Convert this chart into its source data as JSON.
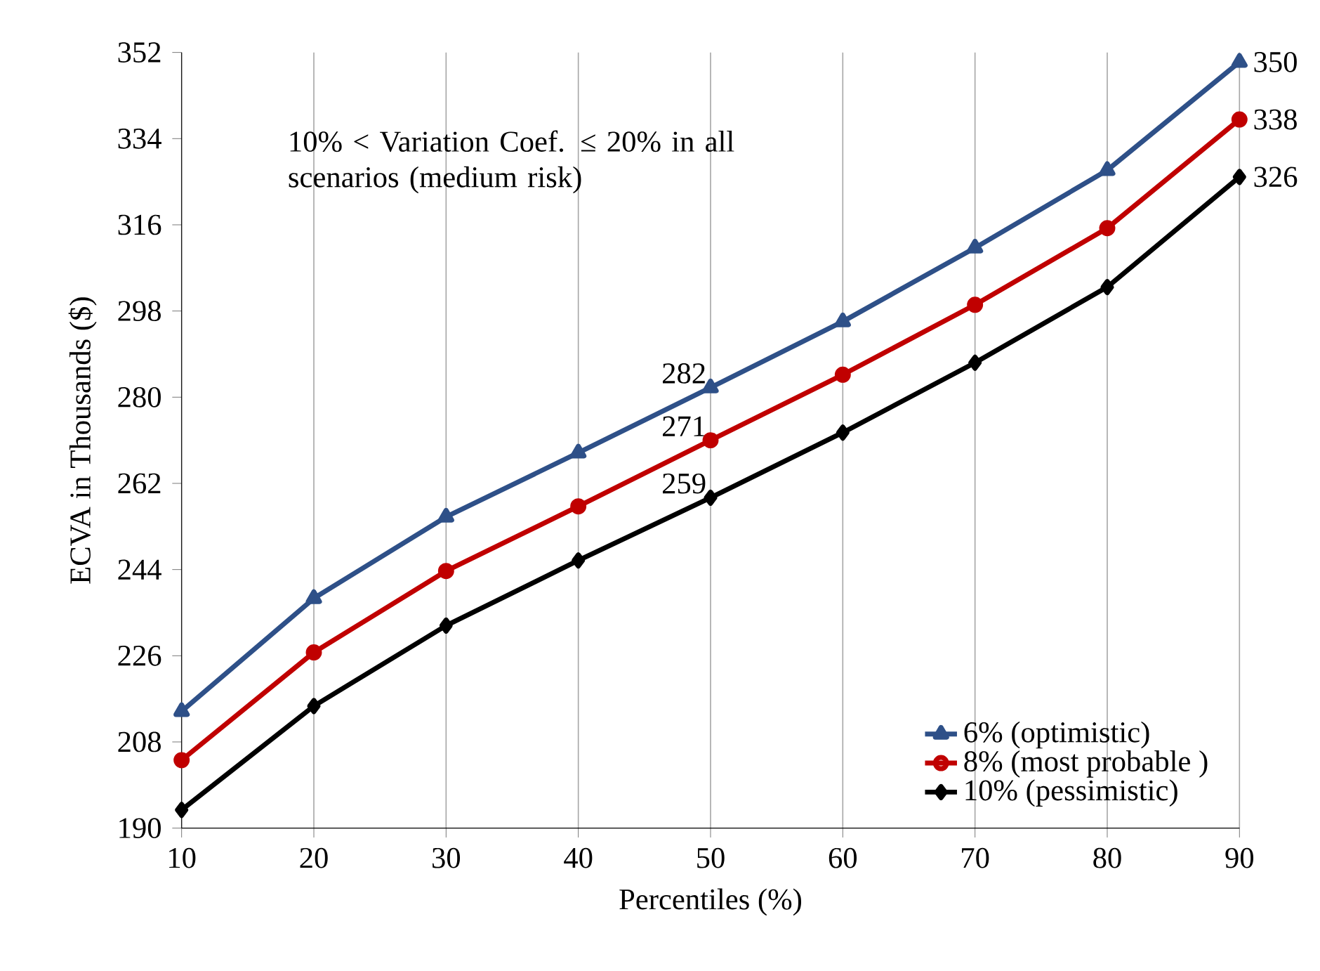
{
  "chart_data": {
    "type": "line",
    "xlabel": "Percentiles (%)",
    "ylabel": "ECVA  in Thousands ($)",
    "annotations": [
      "10% < Variation Coef. ≤ 20% in all scenarios (medium risk)"
    ],
    "x": [
      10,
      20,
      30,
      40,
      50,
      60,
      70,
      80,
      90
    ],
    "series": [
      {
        "name": "6% (optimistic)",
        "color": "#2e5088",
        "marker": "triangle",
        "values": [
          214.4,
          238.0,
          255.0,
          268.4,
          282,
          295.8,
          311.2,
          327.4,
          350
        ],
        "value_labels": [
          null,
          null,
          null,
          null,
          "282",
          null,
          null,
          null,
          "350"
        ]
      },
      {
        "name": "8% (most probable )",
        "color": "#c00000",
        "marker": "circle",
        "values": [
          204.2,
          226.7,
          243.7,
          257.2,
          271,
          284.7,
          299.3,
          315.3,
          338
        ],
        "value_labels": [
          null,
          null,
          null,
          null,
          "271",
          null,
          null,
          null,
          "338"
        ]
      },
      {
        "name": "10% (pessimistic)",
        "color": "#000000",
        "marker": "diamond",
        "values": [
          193.8,
          215.5,
          232.3,
          245.9,
          259,
          272.6,
          287.2,
          303.0,
          326
        ],
        "value_labels": [
          null,
          null,
          null,
          null,
          "259",
          null,
          null,
          null,
          "326"
        ]
      }
    ],
    "xlim": [
      10,
      90
    ],
    "ylim": [
      190,
      352
    ],
    "xticks": [
      10,
      20,
      30,
      40,
      50,
      60,
      70,
      80,
      90
    ],
    "yticks": [
      190,
      208,
      226,
      244,
      262,
      280,
      298,
      316,
      334,
      352
    ],
    "grid": "x",
    "legend": "bottom right"
  }
}
